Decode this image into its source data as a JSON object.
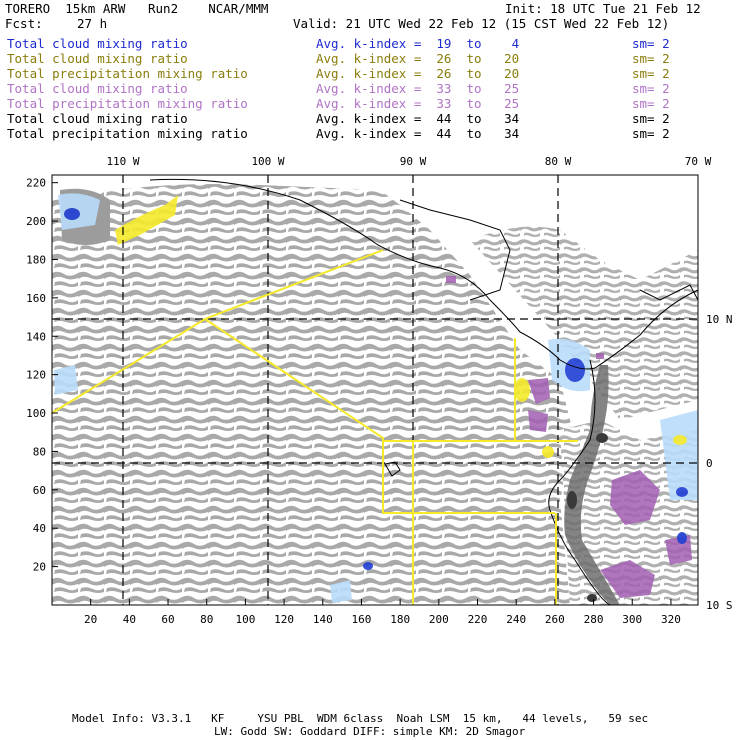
{
  "header": {
    "model": "TORERO  15km ARW   Run2    NCAR/MMM",
    "init": "Init: 18 UTC Tue 21 Feb 12",
    "fcst_label": "Fcst:",
    "fcst_value": "27 h",
    "valid": "Valid: 21 UTC Wed 22 Feb 12 (15 CST Wed 22 Feb 12)"
  },
  "legend": [
    {
      "field": "Total cloud mixing ratio",
      "kindex": "Avg. k-index =  19  to    4",
      "sm": "sm= 2",
      "color": "#1e2ad0"
    },
    {
      "field": "Total cloud mixing ratio",
      "kindex": "Avg. k-index =  26  to   20",
      "sm": "sm= 2",
      "color": "#8a7d0c"
    },
    {
      "field": "Total precipitation mixing ratio",
      "kindex": "Avg. k-index =  26  to   20",
      "sm": "sm= 2",
      "color": "#8a7d0c"
    },
    {
      "field": "Total cloud mixing ratio",
      "kindex": "Avg. k-index =  33  to   25",
      "sm": "sm= 2",
      "color": "#b073c6"
    },
    {
      "field": "Total precipitation mixing ratio",
      "kindex": "Avg. k-index =  33  to   25",
      "sm": "sm= 2",
      "color": "#b073c6"
    },
    {
      "field": "Total cloud mixing ratio",
      "kindex": "Avg. k-index =  44  to   34",
      "sm": "sm= 2",
      "color": "#000000"
    },
    {
      "field": "Total precipitation mixing ratio",
      "kindex": "Avg. k-index =  44  to   34",
      "sm": "sm= 2",
      "color": "#000000"
    }
  ],
  "map": {
    "lon_labels": [
      "110 W",
      "100 W",
      "90 W",
      "80 W",
      "70 W"
    ],
    "lat_labels": [
      "10 N",
      "0",
      "10 S"
    ],
    "y_ticks": [
      "20",
      "40",
      "60",
      "80",
      "100",
      "120",
      "140",
      "160",
      "180",
      "200",
      "220"
    ],
    "x_ticks": [
      "20",
      "40",
      "60",
      "80",
      "100",
      "120",
      "140",
      "160",
      "180",
      "200",
      "220",
      "240",
      "260",
      "280",
      "300",
      "320"
    ],
    "colors": {
      "cloud_gray": "#a9a9a9",
      "dark_gray": "#555555",
      "yellow_box": "#f5ea2a",
      "purple": "#a25fb3",
      "blue": "#1f3fd4",
      "light_blue": "#b9dcfb"
    }
  },
  "footer": {
    "line1": "Model Info: V3.3.1   KF     YSU PBL  WDM 6class  Noah LSM  15 km,   44 levels,   59 sec",
    "line2": "LW: Godd SW: Goddard DIFF: simple KM: 2D Smagor"
  }
}
